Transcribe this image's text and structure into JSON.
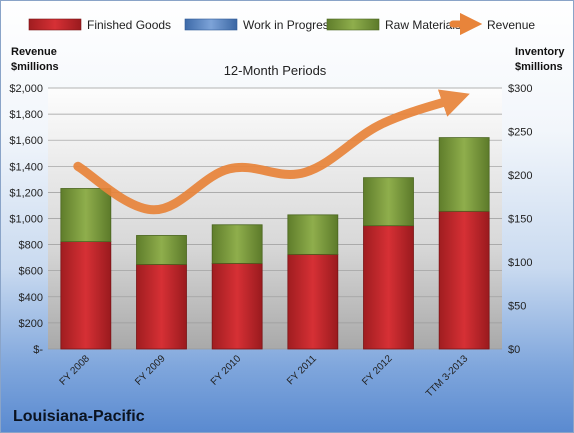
{
  "chart_data": {
    "type": "bar",
    "subtitle": "12-Month Periods",
    "company": "Louisiana-Pacific",
    "categories": [
      "FY 2008",
      "FY 2009",
      "FY 2010",
      "FY 2011",
      "FY 2012",
      "TTM 3-2013"
    ],
    "stacked": true,
    "series": [
      {
        "name": "Finished Goods",
        "axis": "left",
        "color": "#c8262b",
        "values": [
          823,
          648,
          656,
          725,
          945,
          1055
        ]
      },
      {
        "name": "Work in Progress",
        "axis": "left",
        "color": "#4f81bd",
        "values": [
          0,
          0,
          0,
          0,
          0,
          0
        ]
      },
      {
        "name": "Raw Materials",
        "axis": "left",
        "color": "#7a9a3c",
        "values": [
          407,
          222,
          296,
          303,
          368,
          565
        ]
      },
      {
        "name": "Revenue",
        "type": "line",
        "axis": "right",
        "color": "#e8843a",
        "values": [
          210,
          160,
          207,
          203,
          258,
          288
        ]
      }
    ],
    "left_axis": {
      "title_line1": "Revenue",
      "title_line2": "$millions",
      "min": 0,
      "max": 2000,
      "step": 200,
      "tick_labels": [
        "$-",
        "$200",
        "$400",
        "$600",
        "$800",
        "$1,000",
        "$1,200",
        "$1,400",
        "$1,600",
        "$1,800",
        "$2,000"
      ]
    },
    "right_axis": {
      "title_line1": "Inventory",
      "title_line2": "$millions",
      "min": 0,
      "max": 300,
      "step": 50,
      "tick_labels": [
        "$0",
        "$50",
        "$100",
        "$150",
        "$200",
        "$250",
        "$300"
      ]
    },
    "legend": {
      "placement": "top"
    },
    "grid": true
  }
}
